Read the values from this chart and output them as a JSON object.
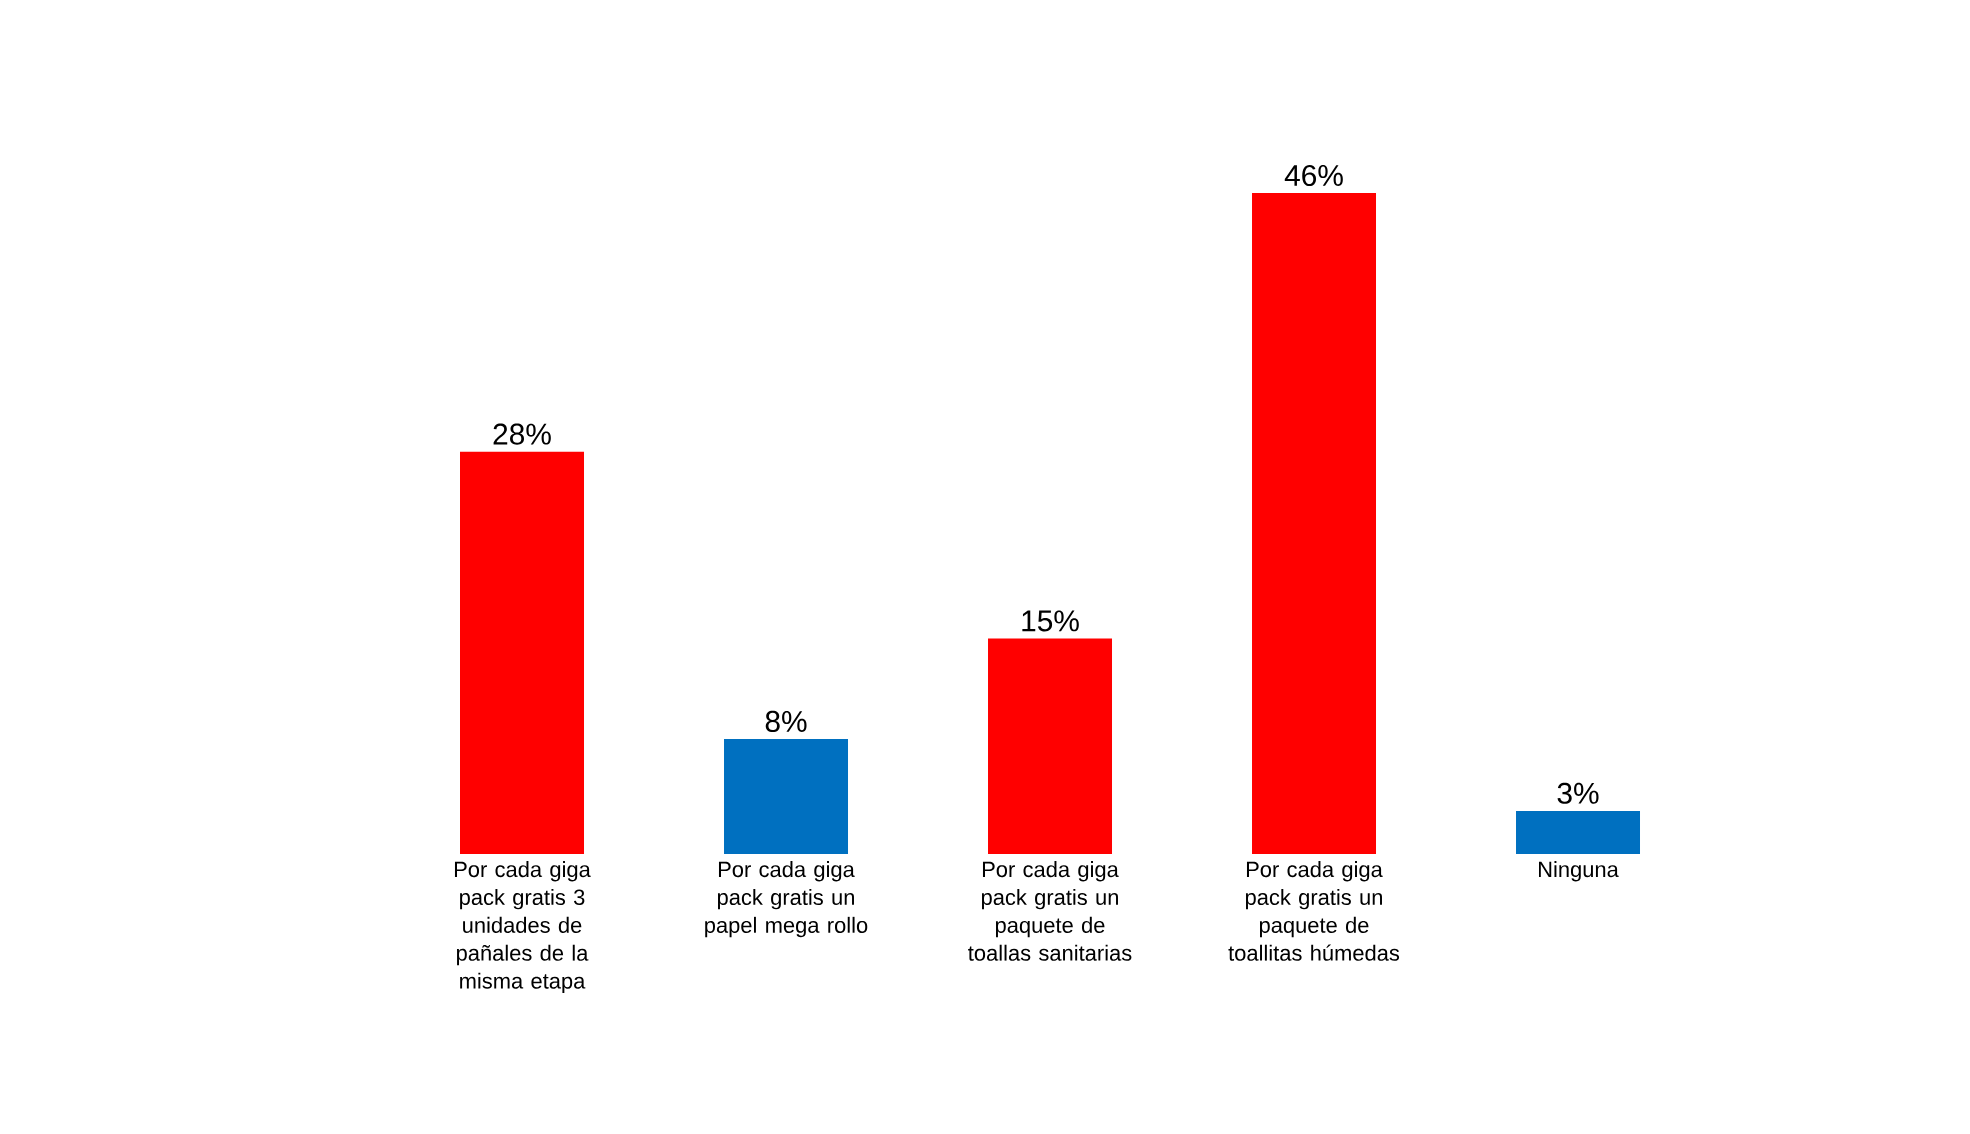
{
  "chart_data": {
    "type": "bar",
    "categories": [
      "Por cada giga pack gratis 3 unidades de pañales de la misma etapa",
      "Por cada giga pack gratis un papel mega rollo",
      "Por cada giga pack gratis un paquete de toallas sanitarias",
      "Por cada giga pack gratis un paquete de toallitas húmedas",
      "Ninguna"
    ],
    "values": [
      28,
      8,
      15,
      46,
      3
    ],
    "colors": [
      "#ff0000",
      "#0070c0",
      "#ff0000",
      "#ff0000",
      "#0070c0"
    ],
    "value_labels": [
      "28%",
      "8%",
      "15%",
      "46%",
      "3%"
    ]
  }
}
